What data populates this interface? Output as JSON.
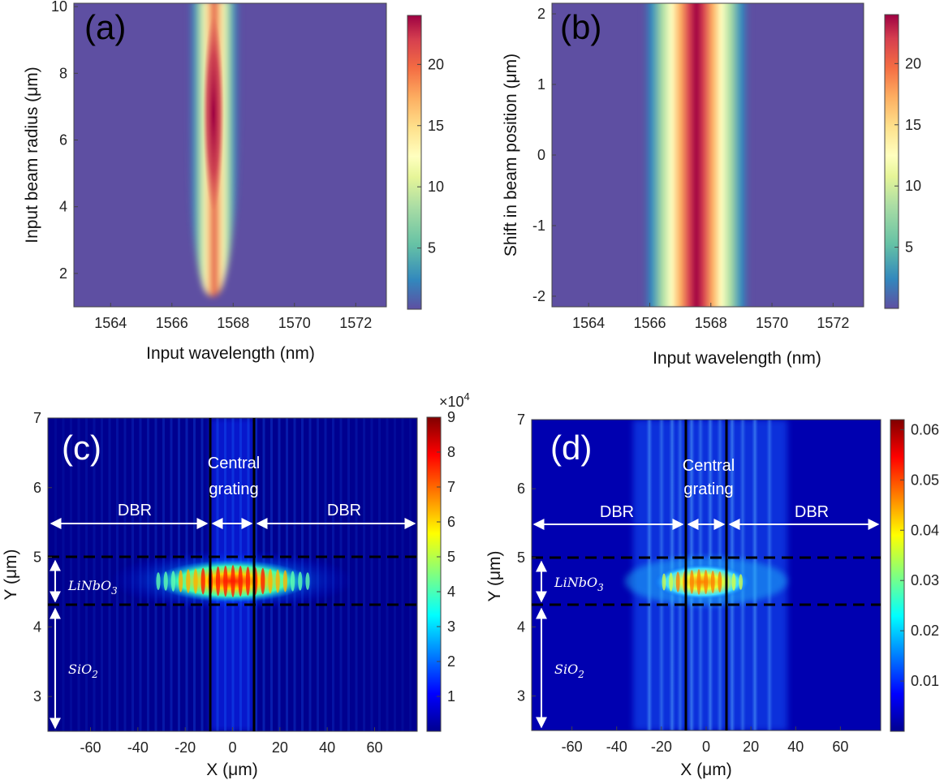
{
  "figure": {
    "panel_labels": [
      "(a)",
      "(b)",
      "(c)",
      "(d)"
    ]
  },
  "chart_data": [
    {
      "id": "a",
      "type": "heatmap",
      "label": "(a)",
      "xlabel": "Input wavelength (nm)",
      "ylabel": "Input beam radius (μm)",
      "xlim": [
        1562.8,
        1573
      ],
      "ylim": [
        1,
        10.1
      ],
      "xticks": [
        1564,
        1566,
        1568,
        1570,
        1572
      ],
      "yticks": [
        2,
        4,
        6,
        8,
        10
      ],
      "colormap": "spectral",
      "clim": [
        0,
        24
      ],
      "colorbar_ticks": [
        5,
        10,
        15,
        20
      ],
      "peak_wavelength_nm": 1567.4,
      "peak_value": 23
    },
    {
      "id": "b",
      "type": "heatmap",
      "label": "(b)",
      "xlabel": "Input wavelength (nm)",
      "ylabel": "Shift in beam position (μm)",
      "xlim": [
        1562.8,
        1573
      ],
      "ylim": [
        -2.15,
        2.15
      ],
      "xticks": [
        1564,
        1566,
        1568,
        1570,
        1572
      ],
      "yticks": [
        -2,
        -1,
        0,
        1,
        2
      ],
      "colormap": "spectral",
      "clim": [
        0,
        24
      ],
      "colorbar_ticks": [
        5,
        10,
        15,
        20
      ],
      "peak_wavelength_nm": 1567.6,
      "peak_value": 23
    },
    {
      "id": "c",
      "type": "heatmap",
      "label": "(c)",
      "xlabel": "X (μm)",
      "ylabel": "Y (μm)",
      "xlim": [
        -78,
        78
      ],
      "ylim": [
        2.5,
        7
      ],
      "xticks": [
        -60,
        -40,
        -20,
        0,
        20,
        40,
        60
      ],
      "yticks": [
        3,
        4,
        5,
        6,
        7
      ],
      "colormap": "jet",
      "clim": [
        0,
        9
      ],
      "colorbar_ticks": [
        1,
        2,
        3,
        4,
        5,
        6,
        7,
        8,
        9
      ],
      "colorbar_exponent": "×10",
      "colorbar_exponent_power": "4",
      "grating_boundaries_um": [
        -9.5,
        9.5
      ],
      "film_layer_y_um": [
        4.33,
        5.02
      ],
      "annotations": {
        "dbr_left": "DBR",
        "dbr_right": "DBR",
        "central_1": "Central",
        "central_2": "grating",
        "film_base": "LiNbO",
        "film_sub": "3",
        "substrate_base": "SiO",
        "substrate_sub": "2"
      }
    },
    {
      "id": "d",
      "type": "heatmap",
      "label": "(d)",
      "xlabel": "X (μm)",
      "ylabel": "Y (μm)",
      "xlim": [
        -78,
        78
      ],
      "ylim": [
        2.5,
        7
      ],
      "xticks": [
        -60,
        -40,
        -20,
        0,
        20,
        40,
        60
      ],
      "yticks": [
        3,
        4,
        5,
        6,
        7
      ],
      "colormap": "jet",
      "clim": [
        0,
        0.062
      ],
      "colorbar_ticks": [
        0.01,
        0.02,
        0.03,
        0.04,
        0.05,
        0.06
      ],
      "colorbar_tick_labels": [
        "0.01",
        "0.02",
        "0.03",
        "0.04",
        "0.05",
        "0.06"
      ],
      "grating_boundaries_um": [
        -9.5,
        9.5
      ],
      "film_layer_y_um": [
        4.33,
        5.02
      ],
      "annotations": {
        "dbr_left": "DBR",
        "dbr_right": "DBR",
        "central_1": "Central",
        "central_2": "grating",
        "film_base": "LiNbO",
        "film_sub": "3",
        "substrate_base": "SiO",
        "substrate_sub": "2"
      }
    }
  ]
}
